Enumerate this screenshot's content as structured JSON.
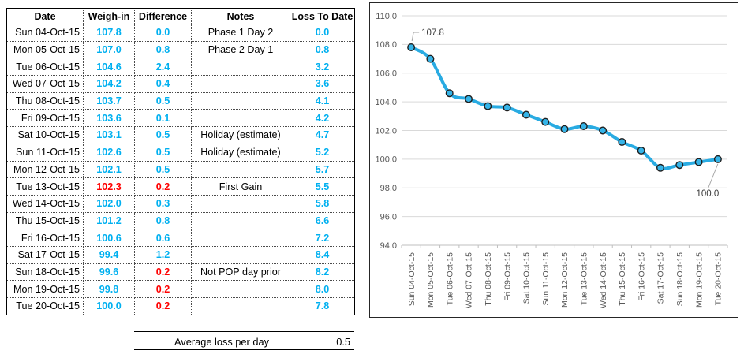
{
  "table": {
    "headers": [
      "Date",
      "Weigh-in",
      "Difference",
      "Notes",
      "Loss To Date"
    ],
    "rows": [
      {
        "date": "Sun 04-Oct-15",
        "weigh_in": "107.8",
        "difference": "0.0",
        "notes": "Phase 1 Day 2",
        "loss_to_date": "0.0",
        "weigh_in_red": false,
        "difference_red": false
      },
      {
        "date": "Mon 05-Oct-15",
        "weigh_in": "107.0",
        "difference": "0.8",
        "notes": "Phase 2 Day 1",
        "loss_to_date": "0.8",
        "weigh_in_red": false,
        "difference_red": false
      },
      {
        "date": "Tue 06-Oct-15",
        "weigh_in": "104.6",
        "difference": "2.4",
        "notes": "",
        "loss_to_date": "3.2",
        "weigh_in_red": false,
        "difference_red": false
      },
      {
        "date": "Wed 07-Oct-15",
        "weigh_in": "104.2",
        "difference": "0.4",
        "notes": "",
        "loss_to_date": "3.6",
        "weigh_in_red": false,
        "difference_red": false
      },
      {
        "date": "Thu 08-Oct-15",
        "weigh_in": "103.7",
        "difference": "0.5",
        "notes": "",
        "loss_to_date": "4.1",
        "weigh_in_red": false,
        "difference_red": false
      },
      {
        "date": "Fri 09-Oct-15",
        "weigh_in": "103.6",
        "difference": "0.1",
        "notes": "",
        "loss_to_date": "4.2",
        "weigh_in_red": false,
        "difference_red": false
      },
      {
        "date": "Sat 10-Oct-15",
        "weigh_in": "103.1",
        "difference": "0.5",
        "notes": "Holiday (estimate)",
        "loss_to_date": "4.7",
        "weigh_in_red": false,
        "difference_red": false
      },
      {
        "date": "Sun 11-Oct-15",
        "weigh_in": "102.6",
        "difference": "0.5",
        "notes": "Holiday (estimate)",
        "loss_to_date": "5.2",
        "weigh_in_red": false,
        "difference_red": false
      },
      {
        "date": "Mon 12-Oct-15",
        "weigh_in": "102.1",
        "difference": "0.5",
        "notes": "",
        "loss_to_date": "5.7",
        "weigh_in_red": false,
        "difference_red": false
      },
      {
        "date": "Tue 13-Oct-15",
        "weigh_in": "102.3",
        "difference": "0.2",
        "notes": "First Gain",
        "loss_to_date": "5.5",
        "weigh_in_red": true,
        "difference_red": true
      },
      {
        "date": "Wed 14-Oct-15",
        "weigh_in": "102.0",
        "difference": "0.3",
        "notes": "",
        "loss_to_date": "5.8",
        "weigh_in_red": false,
        "difference_red": false
      },
      {
        "date": "Thu 15-Oct-15",
        "weigh_in": "101.2",
        "difference": "0.8",
        "notes": "",
        "loss_to_date": "6.6",
        "weigh_in_red": false,
        "difference_red": false
      },
      {
        "date": "Fri 16-Oct-15",
        "weigh_in": "100.6",
        "difference": "0.6",
        "notes": "",
        "loss_to_date": "7.2",
        "weigh_in_red": false,
        "difference_red": false
      },
      {
        "date": "Sat 17-Oct-15",
        "weigh_in": "99.4",
        "difference": "1.2",
        "notes": "",
        "loss_to_date": "8.4",
        "weigh_in_red": false,
        "difference_red": false
      },
      {
        "date": "Sun 18-Oct-15",
        "weigh_in": "99.6",
        "difference": "0.2",
        "notes": "Not POP day prior",
        "loss_to_date": "8.2",
        "weigh_in_red": false,
        "difference_red": true
      },
      {
        "date": "Mon 19-Oct-15",
        "weigh_in": "99.8",
        "difference": "0.2",
        "notes": "",
        "loss_to_date": "8.0",
        "weigh_in_red": false,
        "difference_red": true
      },
      {
        "date": "Tue 20-Oct-15",
        "weigh_in": "100.0",
        "difference": "0.2",
        "notes": "",
        "loss_to_date": "7.8",
        "weigh_in_red": false,
        "difference_red": true
      }
    ],
    "footer": {
      "label": "Average loss per day",
      "value": "0.5"
    }
  },
  "colors": {
    "value_blue": "#00B0F0",
    "value_red": "#FF0000",
    "line_blue": "#29ABE2",
    "marker_fill": "#35B4E8",
    "marker_stroke": "#1F1F1F",
    "gridline": "#D9D9D9",
    "axis_tick": "#BFBFBF",
    "axis_label": "#595959",
    "data_label": "#3A3A3A",
    "leader_line": "#A6A6A6"
  },
  "chart_data": {
    "type": "line",
    "title": "",
    "xlabel": "",
    "ylabel": "",
    "x": [
      "Sun 04-Oct-15",
      "Mon 05-Oct-15",
      "Tue 06-Oct-15",
      "Wed 07-Oct-15",
      "Thu 08-Oct-15",
      "Fri 09-Oct-15",
      "Sat 10-Oct-15",
      "Sun 11-Oct-15",
      "Mon 12-Oct-15",
      "Tue 13-Oct-15",
      "Wed 14-Oct-15",
      "Thu 15-Oct-15",
      "Fri 16-Oct-15",
      "Sat 17-Oct-15",
      "Sun 18-Oct-15",
      "Mon 19-Oct-15",
      "Tue 20-Oct-15"
    ],
    "series": [
      {
        "name": "Weigh-in",
        "values": [
          107.8,
          107.0,
          104.6,
          104.2,
          103.7,
          103.6,
          103.1,
          102.6,
          102.1,
          102.3,
          102.0,
          101.2,
          100.6,
          99.4,
          99.6,
          99.8,
          100.0
        ]
      }
    ],
    "ylim": [
      94.0,
      110.0
    ],
    "ytick_step": 2.0,
    "yticks": [
      "110.0",
      "108.0",
      "106.0",
      "104.0",
      "102.0",
      "100.0",
      "98.0",
      "96.0",
      "94.0"
    ],
    "grid": true,
    "legend": "none",
    "smoothed_line": true,
    "marker": "circle",
    "point_labels": [
      {
        "index": 0,
        "text": "107.8"
      },
      {
        "index": 16,
        "text": "100.0"
      }
    ]
  }
}
